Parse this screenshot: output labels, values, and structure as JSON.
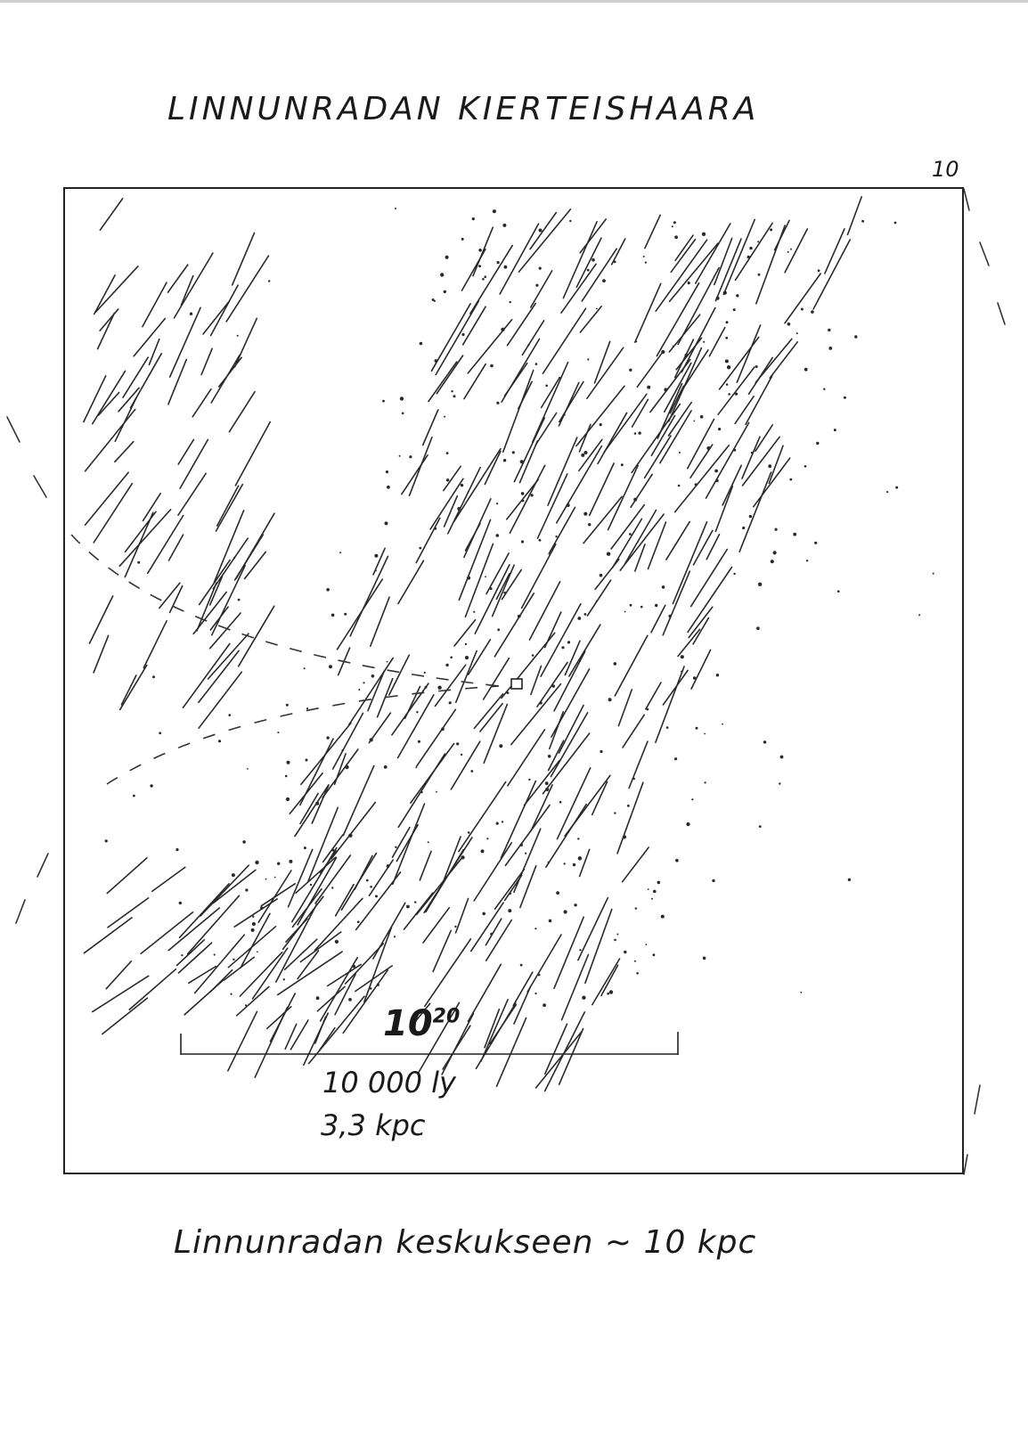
{
  "title": "LINNUNRADAN KIERTEISHAARA",
  "corner_label": "10",
  "scale": {
    "power_base": "10",
    "power_exp": "20",
    "distance_ly": "10 000 ly",
    "distance_kpc": "3,3 kpc"
  },
  "note": "Linnunradan keskukseen ~ 10 kpc",
  "colors": {
    "ink": "#1a1a1a",
    "paper": "#ffffff"
  }
}
